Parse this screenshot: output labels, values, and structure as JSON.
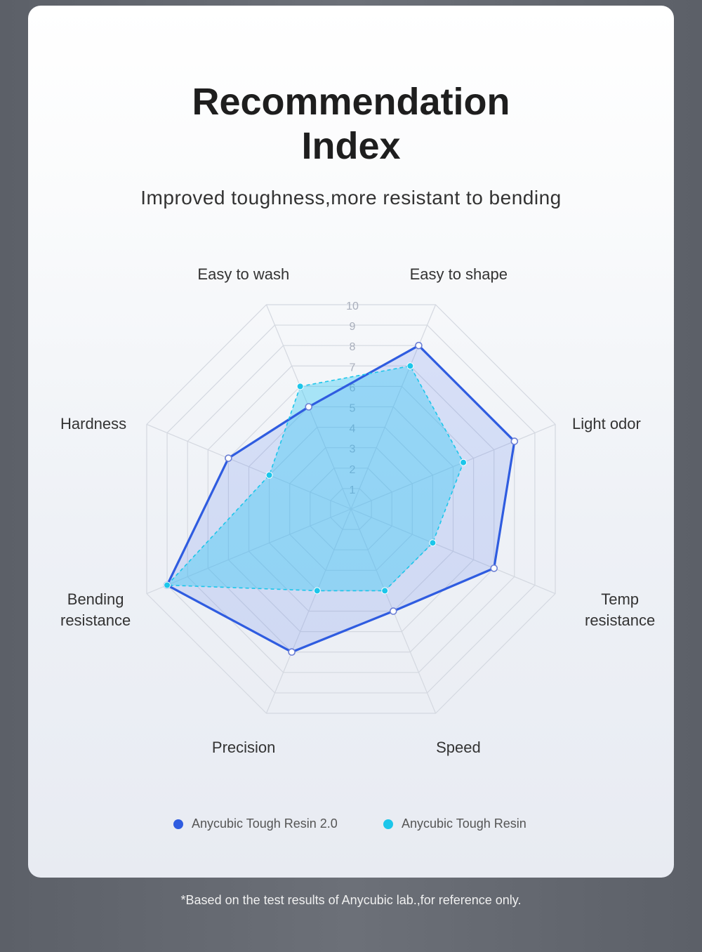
{
  "header": {
    "title_line1": "Recommendation",
    "title_line2": "Index",
    "subtitle": "Improved toughness,more resistant to bending"
  },
  "chart_data": {
    "type": "radar",
    "axes": [
      "Easy to wash",
      "Easy to shape",
      "Light odor",
      "Temp resistance",
      "Speed",
      "Precision",
      "Bending resistance",
      "Hardness"
    ],
    "axis_labels_display": [
      "Easy to wash",
      "Easy to shape",
      "Light odor",
      "Temp\nresistance",
      "Speed",
      "Precision",
      "Bending\nresistance",
      "Hardness"
    ],
    "scale": {
      "min": 0,
      "max": 10,
      "ticks": [
        "1",
        "2",
        "3",
        "4",
        "5",
        "6",
        "7",
        "8",
        "9",
        "10"
      ]
    },
    "series": [
      {
        "name": "Anycubic Tough Resin 2.0",
        "color": "#2f5ce0",
        "values": [
          5,
          8,
          8,
          7,
          5,
          7,
          9,
          6
        ],
        "line": "solid"
      },
      {
        "name": "Anycubic Tough Resin",
        "color": "#1cc6ea",
        "values": [
          6,
          7,
          5.5,
          4,
          4,
          4,
          9,
          4
        ],
        "line": "dashed"
      }
    ],
    "grid": true
  },
  "footnote": "*Based on the test results of Anycubic lab.,for reference only."
}
